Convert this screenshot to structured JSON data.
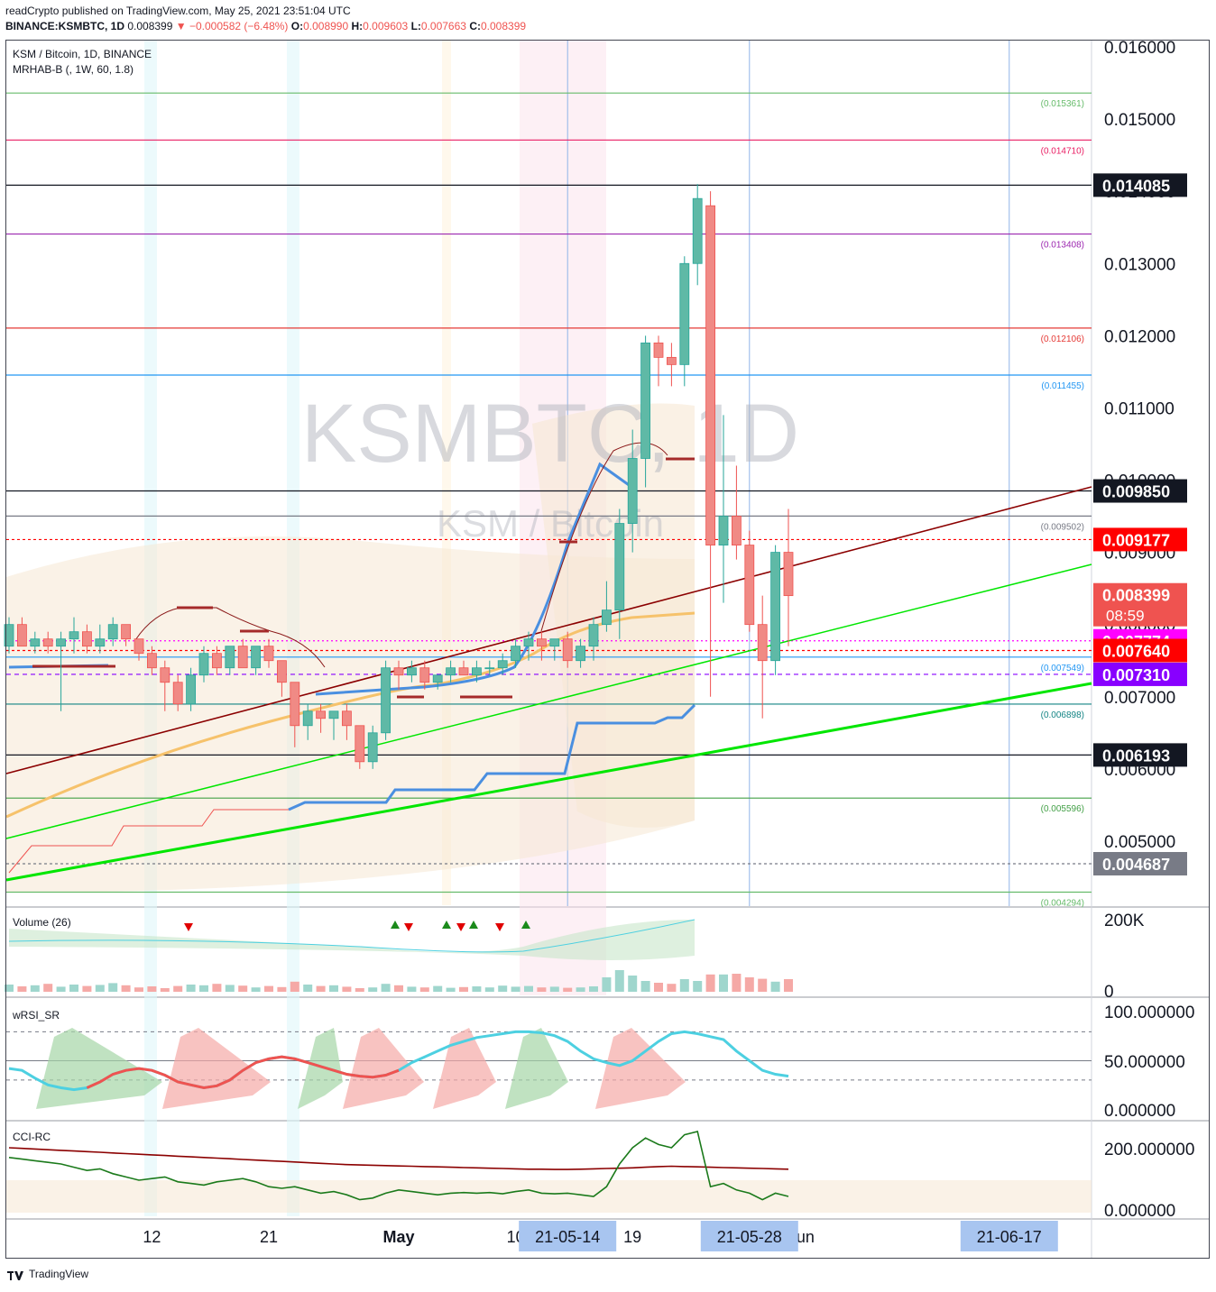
{
  "header": {
    "line1": "readCrypto published on TradingView.com, May 25, 2021 23:51:04 UTC",
    "symbol": "BINANCE:KSMBTC, 1D",
    "last": "0.008399",
    "change": "−0.000582 (−6.48%)",
    "o": "0.008990",
    "h": "0.009603",
    "l": "0.007663",
    "c": "0.008399"
  },
  "legend": {
    "title": "KSM / Bitcoin, 1D, BINANCE",
    "indicator": "MRHAB-B (, 1W, 60, 1.8)"
  },
  "watermark": {
    "main": "KSMBTC, 1D",
    "sub": "KSM / Bitcoin"
  },
  "footer": {
    "brand": "TradingView"
  },
  "colors": {
    "up": "#26a69a",
    "down": "#ef5350",
    "trend_green": "#00e600",
    "trend_maroon": "#8b0000",
    "blue_line": "#4a8fe0",
    "orange_ma": "#f6c26b"
  },
  "chart_data": {
    "type": "candlestick",
    "symbol": "KSMBTC",
    "timeframe": "1D",
    "y_range": [
      0.0041,
      0.0161
    ],
    "y_ticks": [
      "0.016000",
      "0.015000",
      "0.014000",
      "0.013000",
      "0.012000",
      "0.011000",
      "0.010000",
      "0.009000",
      "0.008000",
      "0.007000",
      "0.006000",
      "0.005000"
    ],
    "x_labels": [
      {
        "label": "12",
        "day": 12
      },
      {
        "label": "21",
        "day": 21
      },
      {
        "label": "May",
        "day": 31
      },
      {
        "label": "10",
        "day": 40
      },
      {
        "label": "19",
        "day": 49
      },
      {
        "label": "Jun",
        "day": 62
      }
    ],
    "date_markers": [
      {
        "label": "21-05-14",
        "day": 44
      },
      {
        "label": "21-05-28",
        "day": 58
      },
      {
        "label": "21-06-17",
        "day": 78
      }
    ],
    "candles": [
      [
        0.0077,
        0.0081,
        0.0076,
        0.008
      ],
      [
        0.008,
        0.0081,
        0.0077,
        0.0077
      ],
      [
        0.0077,
        0.0079,
        0.0076,
        0.0078
      ],
      [
        0.0078,
        0.0079,
        0.0076,
        0.0077
      ],
      [
        0.0077,
        0.0079,
        0.0068,
        0.0078
      ],
      [
        0.0078,
        0.0081,
        0.0076,
        0.0079
      ],
      [
        0.0079,
        0.008,
        0.0076,
        0.0077
      ],
      [
        0.0077,
        0.008,
        0.0076,
        0.0078
      ],
      [
        0.0078,
        0.0081,
        0.0077,
        0.008
      ],
      [
        0.008,
        0.008,
        0.0077,
        0.0078
      ],
      [
        0.0078,
        0.0078,
        0.0075,
        0.0076
      ],
      [
        0.0076,
        0.0077,
        0.0073,
        0.0074
      ],
      [
        0.0074,
        0.0075,
        0.0068,
        0.0072
      ],
      [
        0.0072,
        0.0073,
        0.0068,
        0.0069
      ],
      [
        0.0069,
        0.0074,
        0.0068,
        0.0073
      ],
      [
        0.0073,
        0.0077,
        0.0072,
        0.0076
      ],
      [
        0.0076,
        0.0077,
        0.0073,
        0.0074
      ],
      [
        0.0074,
        0.0077,
        0.0073,
        0.0077
      ],
      [
        0.0077,
        0.0078,
        0.0074,
        0.0074
      ],
      [
        0.0074,
        0.0077,
        0.0073,
        0.0077
      ],
      [
        0.0077,
        0.0078,
        0.0074,
        0.0075
      ],
      [
        0.0075,
        0.0075,
        0.007,
        0.0072
      ],
      [
        0.0072,
        0.0072,
        0.0063,
        0.0066
      ],
      [
        0.0066,
        0.0069,
        0.0064,
        0.0068
      ],
      [
        0.0068,
        0.0069,
        0.0065,
        0.0067
      ],
      [
        0.0067,
        0.0068,
        0.0064,
        0.0068
      ],
      [
        0.0068,
        0.0069,
        0.0064,
        0.0066
      ],
      [
        0.0066,
        0.0066,
        0.006,
        0.0061
      ],
      [
        0.0061,
        0.0066,
        0.006,
        0.0065
      ],
      [
        0.0065,
        0.0075,
        0.0064,
        0.0074
      ],
      [
        0.0074,
        0.0075,
        0.0071,
        0.0073
      ],
      [
        0.0073,
        0.0075,
        0.0072,
        0.0074
      ],
      [
        0.0074,
        0.0075,
        0.0071,
        0.0072
      ],
      [
        0.0072,
        0.0073,
        0.0071,
        0.0073
      ],
      [
        0.0073,
        0.0075,
        0.0072,
        0.0074
      ],
      [
        0.0074,
        0.0075,
        0.0073,
        0.0073
      ],
      [
        0.0073,
        0.0075,
        0.0072,
        0.0074
      ],
      [
        0.0074,
        0.0075,
        0.0073,
        0.0074
      ],
      [
        0.0074,
        0.0076,
        0.0073,
        0.0075
      ],
      [
        0.0075,
        0.0078,
        0.0074,
        0.0077
      ],
      [
        0.0077,
        0.0079,
        0.0075,
        0.0078
      ],
      [
        0.0078,
        0.0079,
        0.0075,
        0.0077
      ],
      [
        0.0077,
        0.0078,
        0.0075,
        0.0078
      ],
      [
        0.0078,
        0.0079,
        0.0074,
        0.0075
      ],
      [
        0.0075,
        0.0078,
        0.0074,
        0.0077
      ],
      [
        0.0077,
        0.0081,
        0.0075,
        0.008
      ],
      [
        0.008,
        0.0086,
        0.0079,
        0.0082
      ],
      [
        0.0082,
        0.0096,
        0.0078,
        0.0094
      ],
      [
        0.0094,
        0.0107,
        0.009,
        0.0103
      ],
      [
        0.0103,
        0.012,
        0.0099,
        0.0119
      ],
      [
        0.0119,
        0.012,
        0.0113,
        0.0117
      ],
      [
        0.0117,
        0.0119,
        0.0113,
        0.0116
      ],
      [
        0.0116,
        0.0131,
        0.0113,
        0.013
      ],
      [
        0.013,
        0.0141,
        0.0127,
        0.0139
      ],
      [
        0.0138,
        0.014,
        0.007,
        0.0091
      ],
      [
        0.0091,
        0.0109,
        0.0083,
        0.0095
      ],
      [
        0.0095,
        0.0102,
        0.0089,
        0.0091
      ],
      [
        0.0091,
        0.0093,
        0.0079,
        0.008
      ],
      [
        0.008,
        0.0084,
        0.0067,
        0.0075
      ],
      [
        0.0075,
        0.0091,
        0.0073,
        0.009
      ],
      [
        0.009,
        0.0096,
        0.0077,
        0.0084
      ]
    ],
    "price_lines": [
      {
        "value": 0.015361,
        "label": "(0.015361)",
        "color": "#66bb6a"
      },
      {
        "value": 0.01471,
        "label": "(0.014710)",
        "color": "#e91e63"
      },
      {
        "value": 0.013408,
        "label": "(0.013408)",
        "color": "#9c27b0"
      },
      {
        "value": 0.012106,
        "label": "(0.012106)",
        "color": "#e53935"
      },
      {
        "value": 0.011455,
        "label": "(0.011455)",
        "color": "#2196f3"
      },
      {
        "value": 0.009502,
        "label": "(0.009502)",
        "color": "#787b86"
      },
      {
        "value": 0.007549,
        "label": "(0.007549)",
        "color": "#2196f3"
      },
      {
        "value": 0.006898,
        "label": "(0.006898)",
        "color": "#138484"
      },
      {
        "value": 0.005596,
        "label": "(0.005596)",
        "color": "#43a047"
      },
      {
        "value": 0.004294,
        "label": "(0.004294)",
        "color": "#66bb6a"
      }
    ],
    "axis_badges": [
      {
        "value": 0.014085,
        "text": "0.014085",
        "bg": "#131722"
      },
      {
        "value": 0.00985,
        "text": "0.009850",
        "bg": "#131722"
      },
      {
        "value": 0.009177,
        "text": "0.009177",
        "bg": "#ff0000"
      },
      {
        "value": 0.008399,
        "text": "0.008399",
        "sub": "08:59",
        "bg": "#ef5350"
      },
      {
        "value": 0.007774,
        "text": "0.007774",
        "bg": "#ff00ff"
      },
      {
        "value": 0.00764,
        "text": "0.007640",
        "bg": "#ff0000"
      },
      {
        "value": 0.00731,
        "text": "0.007310",
        "bg": "#8800ff"
      },
      {
        "value": 0.006193,
        "text": "0.006193",
        "bg": "#131722"
      },
      {
        "value": 0.004687,
        "text": "0.004687",
        "bg": "#787b86"
      }
    ],
    "volume": {
      "title": "Volume (26)",
      "y_ticks": [
        "200K",
        "0"
      ],
      "values": [
        20,
        15,
        18,
        22,
        14,
        20,
        16,
        19,
        24,
        18,
        12,
        15,
        10,
        16,
        20,
        18,
        22,
        19,
        17,
        12,
        16,
        13,
        28,
        20,
        16,
        18,
        14,
        10,
        12,
        22,
        18,
        14,
        12,
        16,
        11,
        13,
        15,
        12,
        17,
        14,
        16,
        12,
        14,
        11,
        12,
        15,
        40,
        60,
        45,
        30,
        25,
        22,
        35,
        30,
        48,
        48,
        50,
        40,
        36,
        28,
        35
      ]
    },
    "wrsi": {
      "title": "wRSI_SR",
      "y_ticks": [
        "100.000000",
        "50.000000",
        "0.000000"
      ],
      "values": [
        42,
        40,
        32,
        25,
        22,
        20,
        22,
        28,
        36,
        40,
        42,
        40,
        35,
        28,
        25,
        22,
        24,
        30,
        40,
        48,
        52,
        54,
        52,
        48,
        44,
        40,
        36,
        34,
        33,
        35,
        40,
        48,
        54,
        60,
        66,
        70,
        74,
        76,
        78,
        80,
        80,
        79,
        76,
        70,
        60,
        52,
        48,
        45,
        50,
        60,
        70,
        78,
        80,
        78,
        75,
        72,
        60,
        50,
        40,
        36,
        34
      ],
      "levels": [
        80,
        50,
        30
      ]
    },
    "cci": {
      "title": "CCI-RC",
      "y_ticks": [
        "200.000000",
        "0.000000"
      ],
      "values": [
        170,
        165,
        160,
        155,
        150,
        140,
        130,
        135,
        120,
        110,
        100,
        105,
        110,
        95,
        90,
        85,
        95,
        100,
        105,
        95,
        80,
        75,
        80,
        70,
        60,
        65,
        55,
        40,
        45,
        60,
        70,
        65,
        60,
        55,
        60,
        62,
        60,
        62,
        58,
        65,
        70,
        60,
        58,
        60,
        55,
        50,
        80,
        150,
        200,
        230,
        210,
        200,
        240,
        250,
        80,
        90,
        70,
        60,
        40,
        60,
        50
      ],
      "signal": [
        200,
        198,
        196,
        194,
        192,
        190,
        188,
        186,
        184,
        182,
        180,
        178,
        176,
        174,
        172,
        170,
        168,
        166,
        164,
        162,
        160,
        158,
        156,
        154,
        152,
        150,
        148,
        147,
        146,
        145,
        144,
        143,
        142,
        141,
        140,
        139,
        138,
        137,
        136,
        135,
        134,
        134,
        133,
        133,
        134,
        135,
        136,
        137,
        138,
        140,
        142,
        143,
        142,
        141,
        140,
        139,
        138,
        137,
        136,
        135,
        134
      ]
    }
  }
}
